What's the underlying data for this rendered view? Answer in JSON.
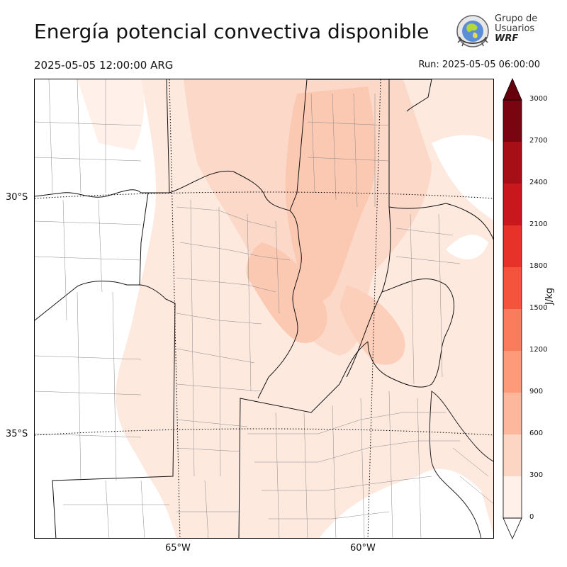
{
  "title": "Energía potencial convectiva disponible",
  "valid_time": "2025-05-05 12:00:00 ARG",
  "run_time": "Run: 2025-05-05 06:00:00",
  "logo": {
    "line1": "Grupo de",
    "line2": "Usuarios",
    "line3": "WRF",
    "icon": "globe-emblem-icon"
  },
  "map": {
    "lat_labels": [
      "30°S",
      "35°S"
    ],
    "lon_labels": [
      "65°W",
      "60°W"
    ],
    "fill_colors": {
      "lowest": "#fee9df",
      "low": "#fcd6c5",
      "medium": "#fbc0a6"
    }
  },
  "colorbar": {
    "unit": "J/kg",
    "ticks": [
      "0",
      "300",
      "600",
      "900",
      "1200",
      "1500",
      "1800",
      "2100",
      "2400",
      "2700",
      "3000"
    ],
    "colors": [
      "#fff0e9",
      "#fdd5c3",
      "#fcb79c",
      "#fc9a7a",
      "#fb7c5c",
      "#f5543c",
      "#e63228",
      "#c9181d",
      "#a50f15",
      "#7a0510"
    ],
    "extend": "both",
    "under_color": "#ffffff",
    "over_color": "#67000d"
  }
}
